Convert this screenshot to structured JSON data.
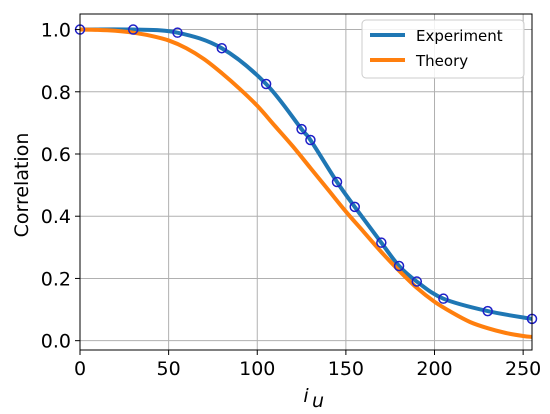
{
  "chart_data": {
    "type": "line",
    "xlabel": "i_u",
    "ylabel": "Correlation",
    "xlim": [
      0,
      255
    ],
    "ylim": [
      -0.03,
      1.05
    ],
    "xticks": [
      0,
      50,
      100,
      150,
      200,
      250
    ],
    "yticks": [
      0.0,
      0.2,
      0.4,
      0.6,
      0.8,
      1.0
    ],
    "grid": true,
    "legend_position": "top-right",
    "series": [
      {
        "name": "Experiment",
        "color": "#1f77b4",
        "markers": true,
        "marker_color": "#1f1fc8",
        "x": [
          0,
          30,
          55,
          80,
          105,
          125,
          130,
          145,
          155,
          170,
          180,
          190,
          205,
          230,
          255
        ],
        "y": [
          1.0,
          1.0,
          0.99,
          0.94,
          0.825,
          0.68,
          0.645,
          0.51,
          0.43,
          0.315,
          0.24,
          0.19,
          0.135,
          0.095,
          0.07
        ]
      },
      {
        "name": "Theory",
        "color": "#ff7f0e",
        "markers": false,
        "x": [
          0,
          10,
          20,
          30,
          40,
          50,
          60,
          70,
          80,
          90,
          100,
          110,
          120,
          130,
          140,
          150,
          160,
          170,
          180,
          190,
          200,
          210,
          220,
          230,
          240,
          250,
          255
        ],
        "y": [
          1.0,
          0.999,
          0.996,
          0.99,
          0.98,
          0.965,
          0.94,
          0.905,
          0.86,
          0.81,
          0.755,
          0.69,
          0.625,
          0.555,
          0.485,
          0.415,
          0.35,
          0.285,
          0.225,
          0.17,
          0.125,
          0.09,
          0.06,
          0.04,
          0.025,
          0.015,
          0.012
        ]
      }
    ]
  }
}
